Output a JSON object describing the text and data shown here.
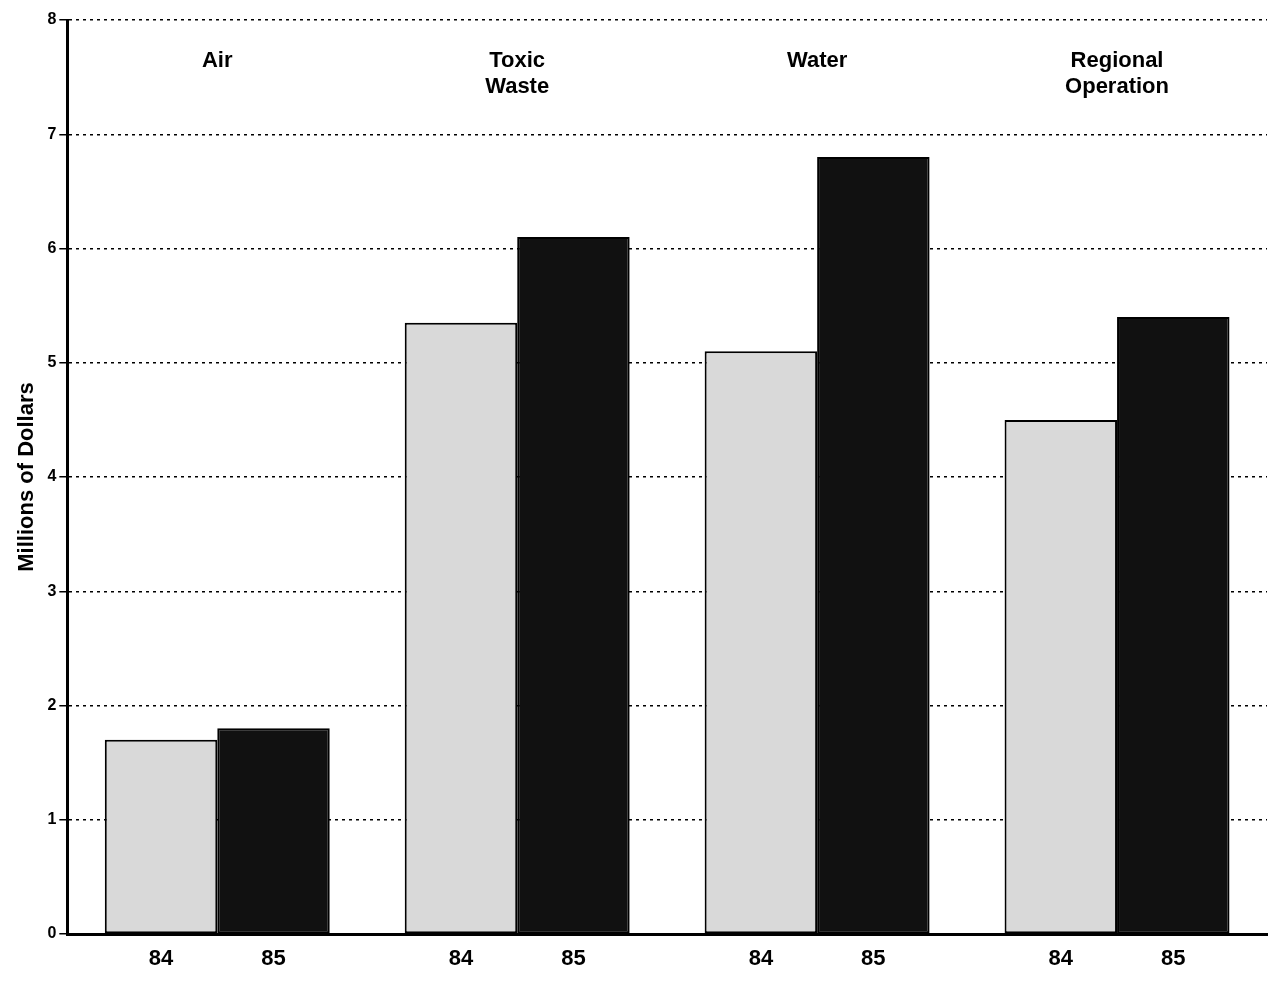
{
  "chart_data": {
    "type": "bar",
    "ylabel": "Millions of Dollars",
    "categories": [
      "Air",
      "Toxic Waste",
      "Water",
      "Regional Operation"
    ],
    "series": [
      {
        "name": "84",
        "color": "#d9d9d9",
        "values": [
          1.7,
          5.35,
          5.1,
          4.5
        ]
      },
      {
        "name": "85",
        "color": "#111111",
        "values": [
          1.8,
          6.1,
          6.8,
          5.4
        ]
      }
    ],
    "ylim": [
      0,
      8
    ],
    "yticks": [
      0,
      1,
      2,
      3,
      4,
      5,
      6,
      7,
      8
    ],
    "grid": "y",
    "legend": false
  }
}
